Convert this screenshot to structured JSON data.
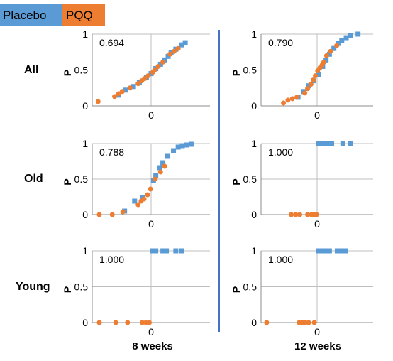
{
  "legend": {
    "placebo_label": "Placebo",
    "pqq_label": "PQQ"
  },
  "colors": {
    "placebo": "#5b9bd5",
    "pqq": "#ed7d31",
    "divider": "#4472c4",
    "grid": "#bfbfbf"
  },
  "rows": [
    "All",
    "Old",
    "Young"
  ],
  "columns": [
    "8 weeks",
    "12 weeks"
  ],
  "chart_data": {
    "type": "scatter",
    "y_ticks": [
      "0",
      "0.5",
      "1"
    ],
    "x_tick": "0",
    "ylabel": "P",
    "ylim": [
      0,
      1
    ],
    "xlim": [
      -1,
      1
    ],
    "panels": [
      {
        "row": "All",
        "col": "8 weeks",
        "stat": "0.694",
        "series": [
          {
            "name": "Placebo",
            "marker": "square",
            "points": [
              [
                -0.56,
                0.15
              ],
              [
                -0.44,
                0.22
              ],
              [
                -0.3,
                0.27
              ],
              [
                -0.2,
                0.33
              ],
              [
                -0.08,
                0.4
              ],
              [
                0.0,
                0.45
              ],
              [
                0.08,
                0.52
              ],
              [
                0.16,
                0.58
              ],
              [
                0.23,
                0.64
              ],
              [
                0.29,
                0.69
              ],
              [
                0.34,
                0.74
              ],
              [
                0.42,
                0.79
              ],
              [
                0.52,
                0.85
              ],
              [
                0.58,
                0.88
              ]
            ]
          },
          {
            "name": "PQQ",
            "marker": "circle",
            "points": [
              [
                -0.9,
                0.06
              ],
              [
                -0.62,
                0.13
              ],
              [
                -0.55,
                0.17
              ],
              [
                -0.49,
                0.2
              ],
              [
                -0.36,
                0.25
              ],
              [
                -0.22,
                0.31
              ],
              [
                -0.16,
                0.35
              ],
              [
                -0.11,
                0.38
              ],
              [
                -0.05,
                0.42
              ],
              [
                0.03,
                0.47
              ],
              [
                0.06,
                0.5
              ],
              [
                0.12,
                0.55
              ],
              [
                0.2,
                0.61
              ],
              [
                0.32,
                0.72
              ],
              [
                0.39,
                0.76
              ],
              [
                0.46,
                0.8
              ]
            ]
          }
        ]
      },
      {
        "row": "All",
        "col": "12 weeks",
        "stat": "0.790",
        "series": [
          {
            "name": "Placebo",
            "marker": "square",
            "points": [
              [
                -0.34,
                0.12
              ],
              [
                -0.24,
                0.2
              ],
              [
                -0.15,
                0.28
              ],
              [
                -0.07,
                0.35
              ],
              [
                0.02,
                0.44
              ],
              [
                0.1,
                0.55
              ],
              [
                0.16,
                0.64
              ],
              [
                0.22,
                0.72
              ],
              [
                0.3,
                0.8
              ],
              [
                0.38,
                0.87
              ],
              [
                0.44,
                0.91
              ],
              [
                0.52,
                0.95
              ],
              [
                0.6,
                0.98
              ],
              [
                0.73,
                1.0
              ]
            ]
          },
          {
            "name": "PQQ",
            "marker": "circle",
            "points": [
              [
                -0.6,
                0.04
              ],
              [
                -0.52,
                0.08
              ],
              [
                -0.44,
                0.1
              ],
              [
                -0.36,
                0.12
              ],
              [
                -0.22,
                0.18
              ],
              [
                -0.17,
                0.24
              ],
              [
                -0.11,
                0.3
              ],
              [
                -0.07,
                0.36
              ],
              [
                -0.03,
                0.42
              ],
              [
                0.01,
                0.49
              ],
              [
                0.05,
                0.53
              ],
              [
                0.09,
                0.57
              ],
              [
                0.12,
                0.61
              ],
              [
                0.17,
                0.7
              ],
              [
                0.24,
                0.76
              ],
              [
                0.35,
                0.84
              ]
            ]
          }
        ]
      },
      {
        "row": "Old",
        "col": "8 weeks",
        "stat": "0.788",
        "series": [
          {
            "name": "Placebo",
            "marker": "square",
            "points": [
              [
                -0.45,
                0.05
              ],
              [
                -0.28,
                0.19
              ],
              [
                -0.15,
                0.24
              ],
              [
                0.04,
                0.48
              ],
              [
                0.08,
                0.55
              ],
              [
                0.14,
                0.66
              ],
              [
                0.2,
                0.73
              ],
              [
                0.28,
                0.82
              ],
              [
                0.38,
                0.9
              ],
              [
                0.46,
                0.95
              ],
              [
                0.53,
                0.97
              ],
              [
                0.6,
                0.98
              ],
              [
                0.68,
                0.99
              ]
            ]
          },
          {
            "name": "PQQ",
            "marker": "circle",
            "points": [
              [
                -0.88,
                0.0
              ],
              [
                -0.66,
                0.0
              ],
              [
                -0.48,
                0.04
              ],
              [
                -0.22,
                0.14
              ],
              [
                -0.17,
                0.19
              ],
              [
                -0.12,
                0.22
              ],
              [
                -0.06,
                0.28
              ],
              [
                -0.01,
                0.36
              ],
              [
                0.07,
                0.5
              ],
              [
                0.16,
                0.6
              ],
              [
                0.23,
                0.68
              ]
            ]
          }
        ]
      },
      {
        "row": "Old",
        "col": "12 weeks",
        "stat": "1.000",
        "series": [
          {
            "name": "Placebo",
            "marker": "square",
            "points": [
              [
                0.02,
                1
              ],
              [
                0.06,
                1
              ],
              [
                0.1,
                1
              ],
              [
                0.14,
                1
              ],
              [
                0.18,
                1
              ],
              [
                0.22,
                1
              ],
              [
                0.26,
                1
              ],
              [
                0.46,
                1
              ],
              [
                0.6,
                1
              ]
            ]
          },
          {
            "name": "PQQ",
            "marker": "circle",
            "points": [
              [
                -0.46,
                0
              ],
              [
                -0.38,
                0
              ],
              [
                -0.31,
                0
              ],
              [
                -0.17,
                0
              ],
              [
                -0.1,
                0
              ],
              [
                -0.05,
                0
              ],
              [
                -0.01,
                0
              ]
            ]
          }
        ]
      },
      {
        "row": "Young",
        "col": "8 weeks",
        "stat": "1.000",
        "series": [
          {
            "name": "Placebo",
            "marker": "square",
            "points": [
              [
                0.02,
                1
              ],
              [
                0.08,
                1
              ],
              [
                0.2,
                1
              ],
              [
                0.26,
                1
              ],
              [
                0.42,
                1
              ],
              [
                0.52,
                1
              ]
            ]
          },
          {
            "name": "PQQ",
            "marker": "circle",
            "points": [
              [
                -0.88,
                0
              ],
              [
                -0.6,
                0
              ],
              [
                -0.4,
                0
              ],
              [
                -0.15,
                0
              ],
              [
                -0.09,
                0
              ],
              [
                -0.03,
                0
              ]
            ]
          }
        ]
      },
      {
        "row": "Young",
        "col": "12 weeks",
        "stat": "1.000",
        "series": [
          {
            "name": "Placebo",
            "marker": "square",
            "points": [
              [
                0.02,
                1
              ],
              [
                0.07,
                1
              ],
              [
                0.12,
                1
              ],
              [
                0.17,
                1
              ],
              [
                0.22,
                1
              ],
              [
                0.36,
                1
              ],
              [
                0.42,
                1
              ],
              [
                0.5,
                1
              ]
            ]
          },
          {
            "name": "PQQ",
            "marker": "circle",
            "points": [
              [
                -0.9,
                0
              ],
              [
                -0.32,
                0
              ],
              [
                -0.26,
                0
              ],
              [
                -0.21,
                0
              ],
              [
                -0.15,
                0
              ],
              [
                -0.05,
                0
              ]
            ]
          }
        ]
      }
    ]
  }
}
